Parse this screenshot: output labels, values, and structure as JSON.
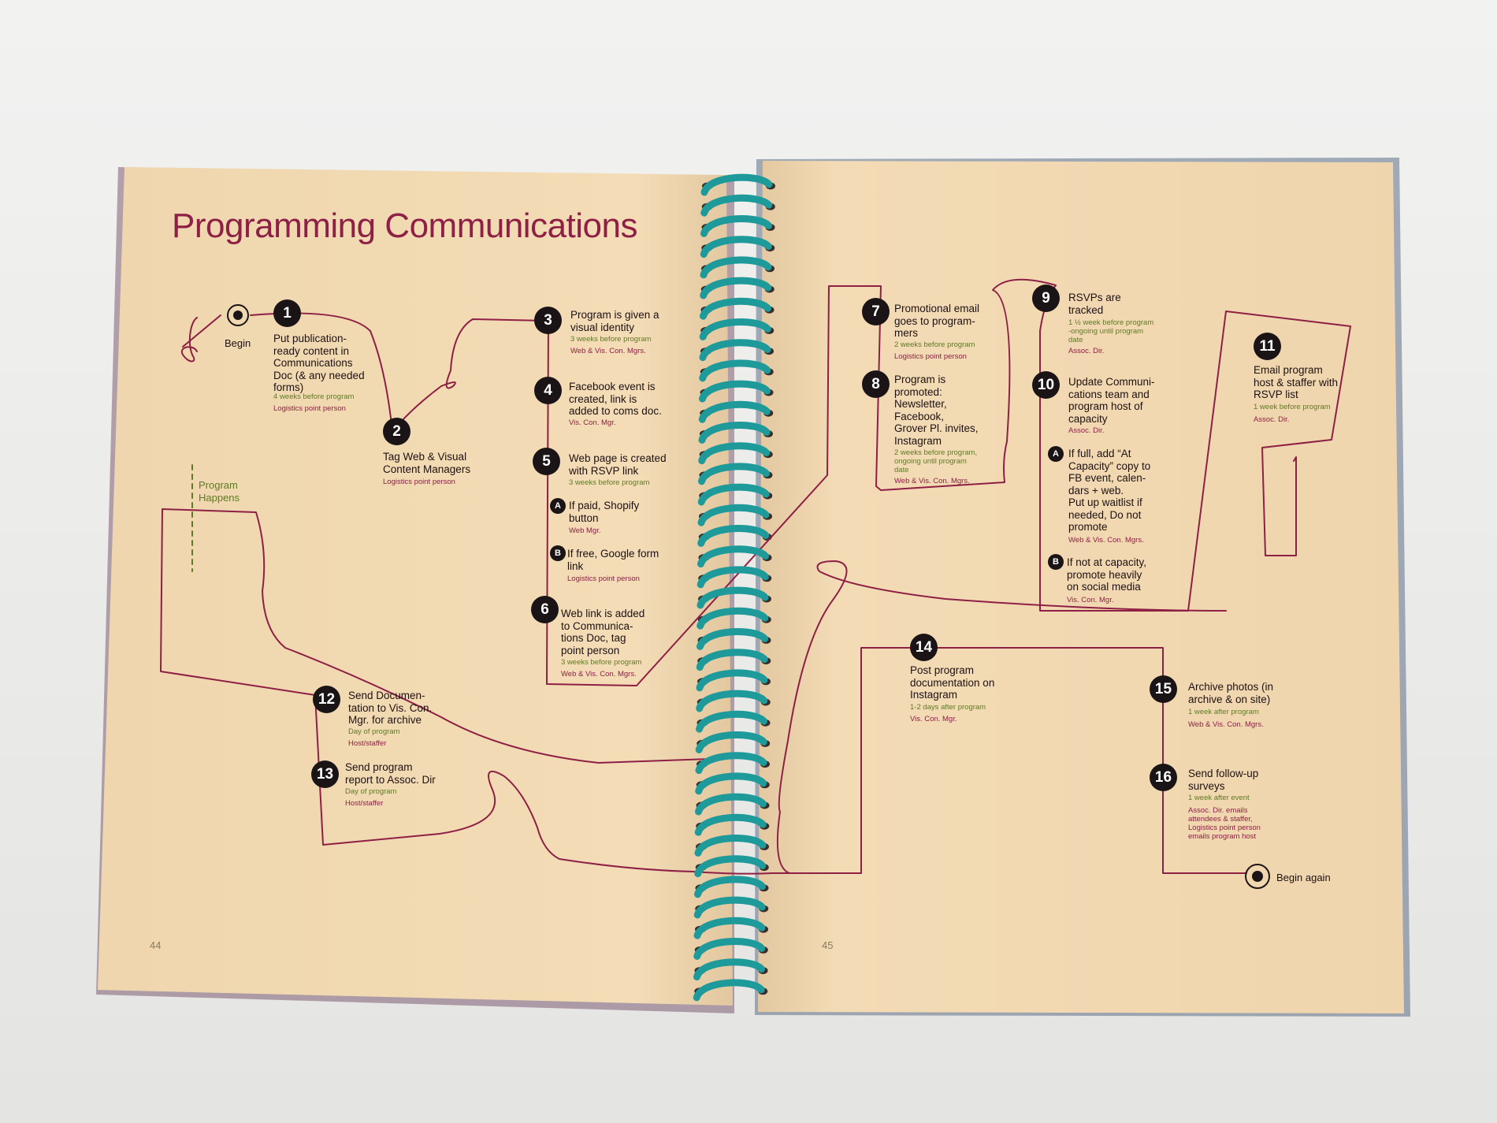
{
  "title": "Programming Communications",
  "begin_label": "Begin",
  "begin_again_label": "Begin again",
  "program_happens": "Program\nHappens",
  "page_numbers": {
    "left": "44",
    "right": "45"
  },
  "colors": {
    "accent": "#8e1f45",
    "timing": "#5f7a25",
    "paper": "#f1d9b3",
    "spiral": "#1f9a9a"
  },
  "steps": [
    {
      "n": "1",
      "text": "Put publication-\nready content in\nCommunications\nDoc (& any needed\nforms)",
      "when": "4 weeks before program",
      "who": "Logistics point person"
    },
    {
      "n": "2",
      "text": "Tag Web & Visual\nContent Managers",
      "when": "",
      "who": "Logistics point person"
    },
    {
      "n": "3",
      "text": "Program is given a\nvisual identity",
      "when": "3 weeks before program",
      "who": "Web & Vis. Con. Mgrs."
    },
    {
      "n": "4",
      "text": "Facebook event is\ncreated, link is\nadded to coms doc.",
      "when": "",
      "who": "Vis. Con. Mgr."
    },
    {
      "n": "5",
      "text": "Web page is created\nwith RSVP link",
      "when": "3 weeks before program",
      "who": ""
    },
    {
      "n": "6",
      "text": "Web link is added\nto Communica-\ntions Doc, tag\npoint person",
      "when": "3 weeks before program",
      "who": "Web & Vis. Con. Mgrs."
    },
    {
      "n": "7",
      "text": "Promotional email\ngoes to program-\nmers",
      "when": "2 weeks before program",
      "who": "Logistics point person"
    },
    {
      "n": "8",
      "text": "Program is\npromoted:\nNewsletter,\nFacebook,\nGrover Pl. invites,\nInstagram",
      "when": "2 weeks before program,\nongoing until program\ndate",
      "who": "Web & Vis. Con. Mgrs."
    },
    {
      "n": "9",
      "text": "RSVPs are\ntracked",
      "when": "1 ½ week before program\n-ongoing until program\ndate",
      "who": "Assoc. Dir."
    },
    {
      "n": "10",
      "text": "Update Communi-\ncations team and\nprogram host of\ncapacity",
      "when": "",
      "who": "Assoc. Dir."
    },
    {
      "n": "11",
      "text": "Email program\nhost & staffer with\nRSVP list",
      "when": "1 week before program",
      "who": "Assoc. Dir."
    },
    {
      "n": "12",
      "text": "Send Documen-\ntation to Vis. Con.\nMgr. for archive",
      "when": "Day of program",
      "who": "Host/staffer"
    },
    {
      "n": "13",
      "text": "Send program\nreport to Assoc. Dir",
      "when": "Day of program",
      "who": "Host/staffer"
    },
    {
      "n": "14",
      "text": "Post program\ndocumentation on\nInstagram",
      "when": "1-2 days after program",
      "who": "Vis. Con. Mgr."
    },
    {
      "n": "15",
      "text": "Archive photos (in\narchive & on site)",
      "when": "1 week after program",
      "who": "Web & Vis. Con. Mgrs."
    },
    {
      "n": "16",
      "text": "Send follow-up\nsurveys",
      "when": "1 week after event",
      "who": "Assoc. Dir. emails\nattendees & staffer,\nLogistics point person\nemails program host"
    }
  ],
  "substeps": [
    {
      "mark": "A",
      "text": "If paid, Shopify\nbutton",
      "who": "Web Mgr."
    },
    {
      "mark": "B",
      "text": "If free, Google form\nlink",
      "who": "Logistics point person"
    },
    {
      "mark": "A",
      "text": "If full, add “At\nCapacity” copy to\nFB event, calen-\ndars + web.\nPut up waitlist if\nneeded, Do not\npromote",
      "who": "Web & Vis. Con. Mgrs."
    },
    {
      "mark": "B",
      "text": "If not at capacity,\npromote heavily\non social media",
      "who": "Vis. Con. Mgr."
    }
  ]
}
